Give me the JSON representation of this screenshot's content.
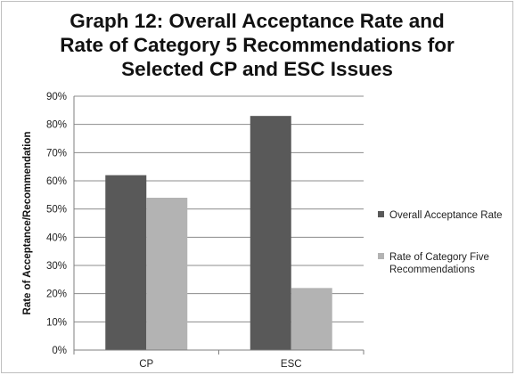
{
  "chart_data": {
    "type": "bar",
    "title_lines": [
      "Graph 12: Overall Acceptance Rate and",
      "Rate of Category 5 Recommendations for",
      "Selected CP and ESC Issues"
    ],
    "xlabel": "",
    "ylabel": "Rate of Acceptance/Recommendation",
    "categories": [
      "CP",
      "ESC"
    ],
    "ylim": [
      0,
      90
    ],
    "yticks": [
      0,
      10,
      20,
      30,
      40,
      50,
      60,
      70,
      80,
      90
    ],
    "ytick_labels": [
      "0%",
      "10%",
      "20%",
      "30%",
      "40%",
      "50%",
      "60%",
      "70%",
      "80%",
      "90%"
    ],
    "grid": "horizontal",
    "legend_position": "right",
    "series": [
      {
        "name": "Overall Acceptance Rate",
        "legend_lines": [
          "Overall Acceptance Rate"
        ],
        "color": "#595959",
        "values": [
          62,
          83
        ]
      },
      {
        "name": "Rate of Category Five Recommendations",
        "legend_lines": [
          "Rate of Category Five",
          "Recommendations"
        ],
        "color": "#b3b3b3",
        "values": [
          54,
          22
        ]
      }
    ]
  }
}
